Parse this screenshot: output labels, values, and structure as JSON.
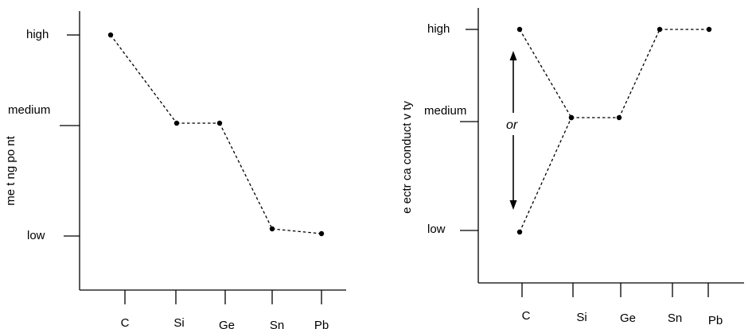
{
  "chart_data": [
    {
      "type": "line",
      "title": "",
      "xlabel": "",
      "ylabel": "me t ng po nt",
      "categories": [
        "C",
        "Si",
        "Ge",
        "Sn",
        "Pb"
      ],
      "ytick_labels": [
        "high",
        "medium",
        "low"
      ],
      "series": [
        {
          "values": [
            "high",
            "medium",
            "medium",
            "low",
            "low"
          ]
        }
      ],
      "annotation": "",
      "grid": false
    },
    {
      "type": "line",
      "title": "",
      "xlabel": "",
      "ylabel": "e ectr ca conduct v ty",
      "categories": [
        "C",
        "Si",
        "Ge",
        "Sn",
        "Pb"
      ],
      "ytick_labels": [
        "high",
        "medium",
        "low"
      ],
      "series": [
        {
          "values": [
            "high",
            "medium",
            "medium",
            "high",
            "high"
          ]
        },
        {
          "values": [
            "low",
            "medium",
            null,
            null,
            null
          ]
        }
      ],
      "annotation": "or",
      "grid": false
    }
  ]
}
